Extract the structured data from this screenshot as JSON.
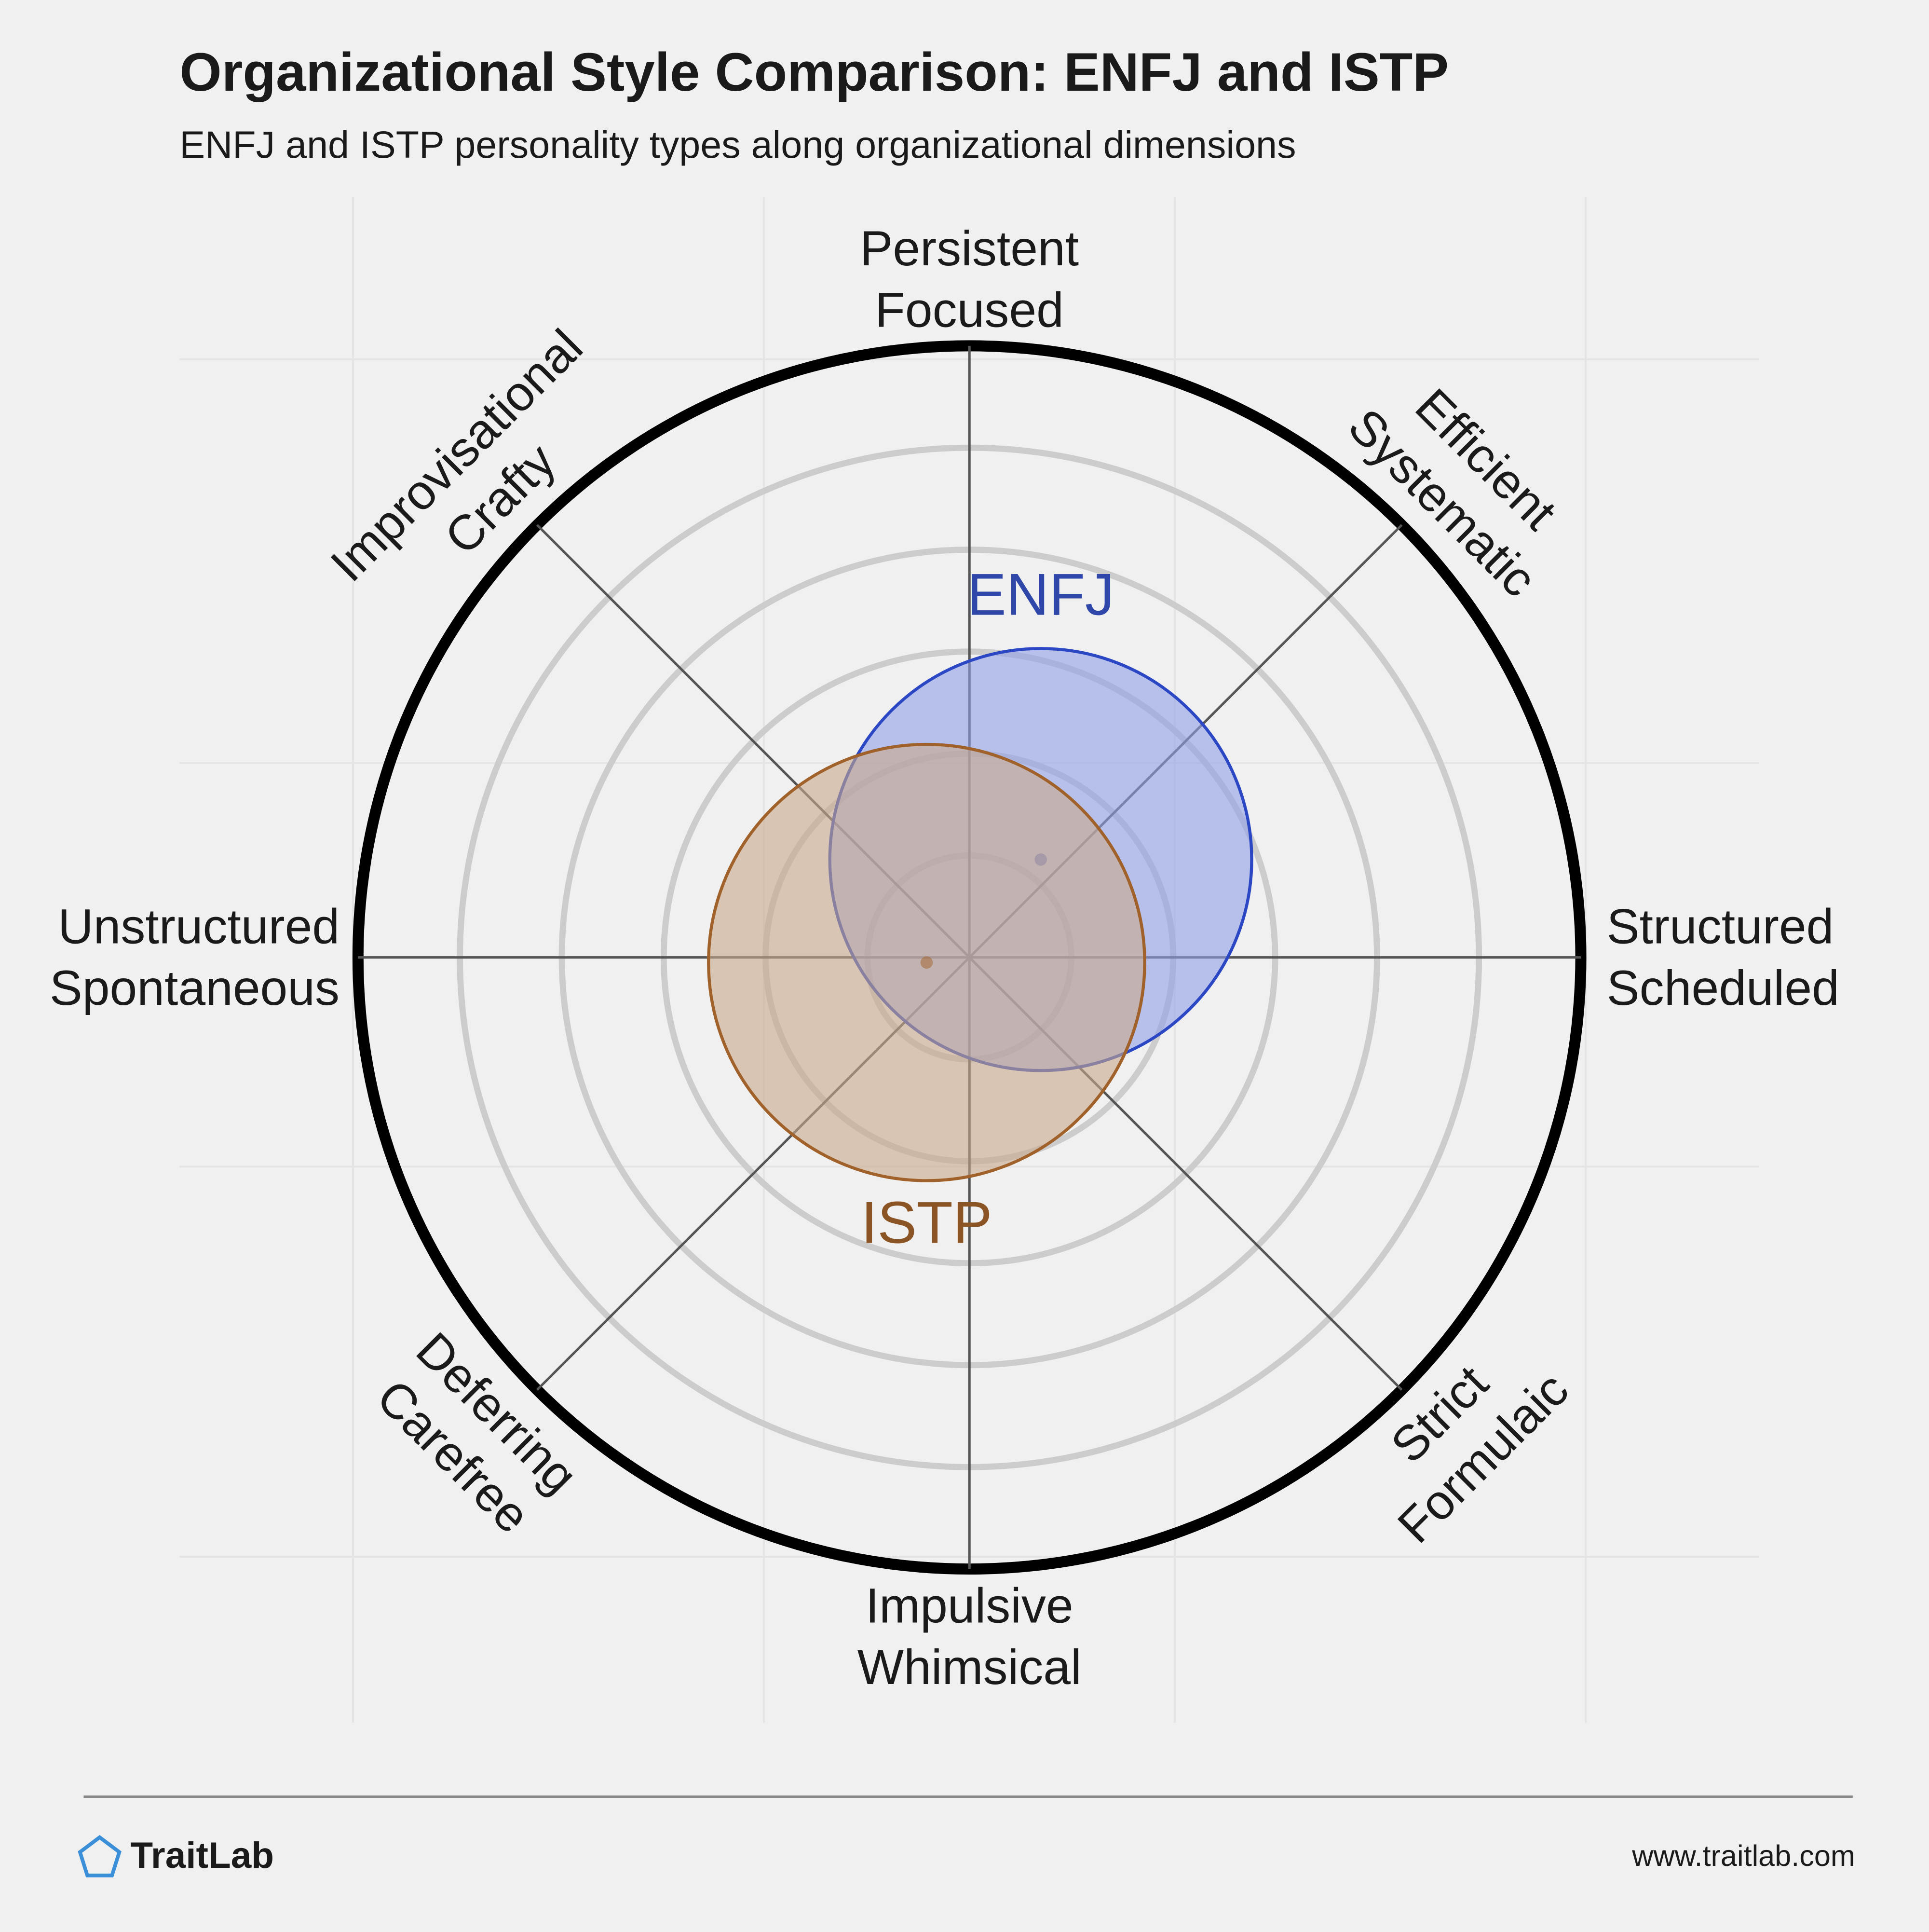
{
  "chart_data": {
    "type": "polar-circles",
    "title": "Organizational Style Comparison: ENFJ and ISTP",
    "subtitle": "ENFJ and ISTP personality types along organizational dimensions",
    "axes": [
      {
        "lines": [
          "Persistent",
          "Focused"
        ]
      },
      {
        "lines": [
          "Efficient",
          "Systematic"
        ]
      },
      {
        "lines": [
          "Structured",
          "Scheduled"
        ]
      },
      {
        "lines": [
          "Strict",
          "Formulaic"
        ]
      },
      {
        "lines": [
          "Impulsive",
          "Whimsical"
        ]
      },
      {
        "lines": [
          "Deferring",
          "Carefree"
        ]
      },
      {
        "lines": [
          "Unstructured",
          "Spontaneous"
        ]
      },
      {
        "lines": [
          "Improvisational",
          "Crafty"
        ]
      }
    ],
    "rlim": [
      0,
      6
    ],
    "rings": [
      1,
      2,
      3,
      4,
      5
    ],
    "series": [
      {
        "name": "ENFJ",
        "color": "#2b47c4",
        "label_color": "#2f47a8",
        "fill": "#8fa0e6",
        "x": 0.7,
        "y": 0.96,
        "r": 2.07
      },
      {
        "name": "ISTP",
        "color": "#a0622a",
        "label_color": "#8a5424",
        "fill": "#c9a98a",
        "x": -0.42,
        "y": -0.05,
        "r": 2.14
      }
    ],
    "brand": "TraitLab",
    "url": "www.traitlab.com"
  }
}
